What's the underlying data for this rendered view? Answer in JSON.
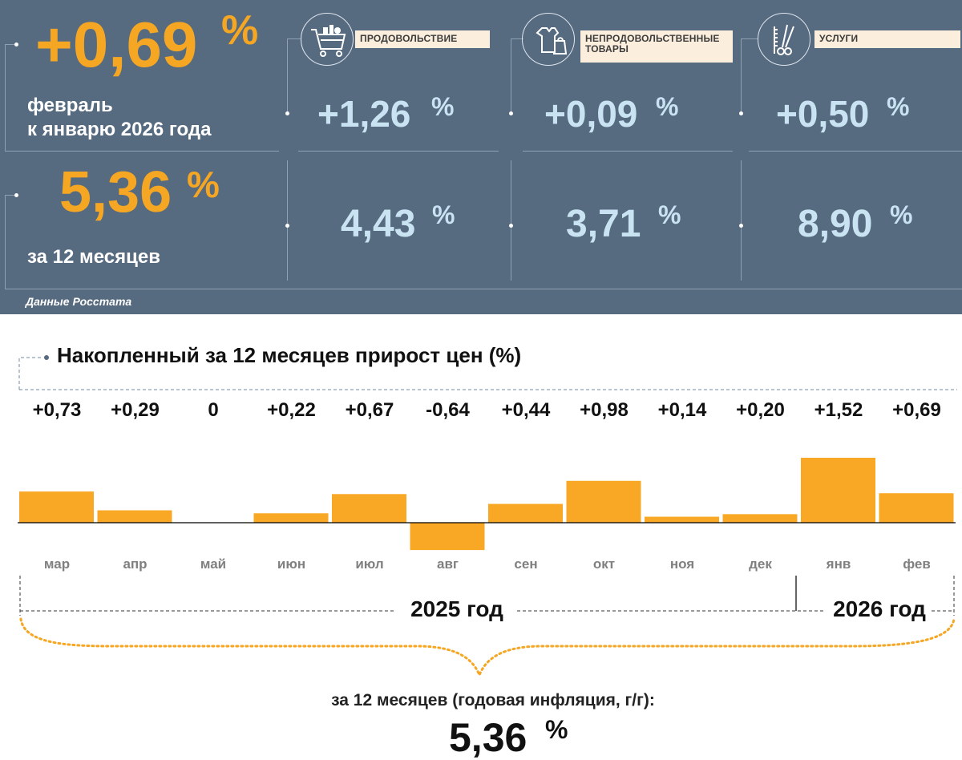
{
  "header": {
    "monthly": {
      "value": "+0,69",
      "unit": "%",
      "caption_line1": "февраль",
      "caption_line2": "к январю 2026 года"
    },
    "annual": {
      "value": "5,36",
      "unit": "%",
      "caption": "за 12 месяцев"
    },
    "source": "Данные Росстата",
    "categories": [
      {
        "label_line1": "ПРОДОВОЛЬСТВИЕ",
        "label_line2": "",
        "icon": "shopping-cart-icon",
        "monthly": "+1,26",
        "annual": "4,43",
        "unit": "%"
      },
      {
        "label_line1": "НЕПРОДОВОЛЬСТВЕННЫЕ",
        "label_line2": "ТОВАРЫ",
        "icon": "clothes-bag-icon",
        "monthly": "+0,09",
        "annual": "3,71",
        "unit": "%"
      },
      {
        "label_line1": "УСЛУГИ",
        "label_line2": "",
        "icon": "scissors-comb-icon",
        "monthly": "+0,50",
        "annual": "8,90",
        "unit": "%"
      }
    ]
  },
  "chart_data": {
    "type": "bar",
    "title": "Накопленный за 12 месяцев прирост цен (%)",
    "categories": [
      "мар",
      "апр",
      "май",
      "июн",
      "июл",
      "авг",
      "сен",
      "окт",
      "ноя",
      "дек",
      "янв",
      "фев"
    ],
    "values": [
      0.73,
      0.29,
      0,
      0.22,
      0.67,
      -0.64,
      0.44,
      0.98,
      0.14,
      0.2,
      1.52,
      0.69
    ],
    "value_labels": [
      "+0,73",
      "+0,29",
      "0",
      "+0,22",
      "+0,67",
      "-0,64",
      "+0,44",
      "+0,98",
      "+0,14",
      "+0,20",
      "+1,52",
      "+0,69"
    ],
    "year_labels": [
      "2025 год",
      "2026 год"
    ],
    "summary_label": "за 12 месяцев (годовая инфляция, г/г):",
    "summary_value": "5,36",
    "summary_unit": "%",
    "colors": {
      "bar": "#f9a825",
      "panel": "#566a80",
      "accent": "#f5a623",
      "light_value": "#c9e3f2"
    }
  }
}
